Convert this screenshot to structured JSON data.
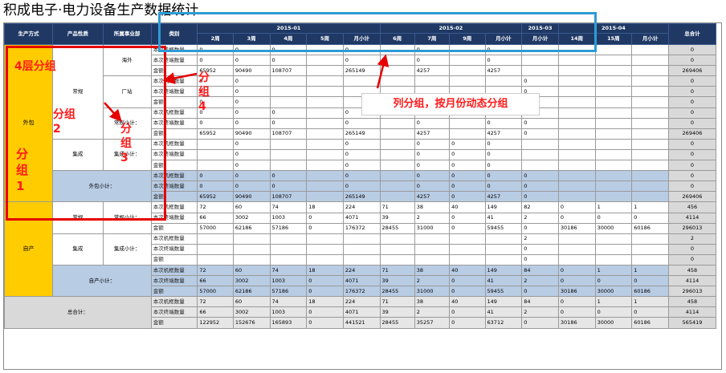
{
  "title": "积成电子·电力设备生产数据统计",
  "headers": {
    "method": "生产方式",
    "attr": "产品性质",
    "dept": "所属事业部",
    "cat": "类别",
    "total": "总合计",
    "months": [
      {
        "label": "2015-01",
        "span": 5
      },
      {
        "label": "2015-02",
        "span": 4
      },
      {
        "label": "2015-03",
        "span": 1
      },
      {
        "label": "2015-04",
        "span": 3
      }
    ],
    "weeks": [
      "2周",
      "3周",
      "4周",
      "5周",
      "月小计",
      "6周",
      "7周",
      "9周",
      "月小计",
      "月小计",
      "14周",
      "15周",
      "月小计"
    ]
  },
  "labels": {
    "waibao": "外包",
    "zichan": "自产",
    "changgui": "常规",
    "jicheng": "集成",
    "haiwai": "海外",
    "changzhan": "厂站",
    "changgui_xiaoji": "常规小计：",
    "jicheng_xiaoji": "集成小计：",
    "waibao_xiaoji": "外包小计：",
    "zichan_xiaoji": "自产小计：",
    "zongheji": "总合计："
  },
  "rows": [
    {
      "cat": "本次机框数量",
      "v": [
        "0",
        "0",
        "0",
        "",
        "0",
        "",
        "0",
        "",
        "0",
        "",
        "",
        "",
        ""
      ],
      "t": "0"
    },
    {
      "cat": "本次终端数量",
      "v": [
        "0",
        "0",
        "0",
        "",
        "0",
        "",
        "0",
        "",
        "0",
        "",
        "",
        "",
        ""
      ],
      "t": "0"
    },
    {
      "cat": "金额",
      "v": [
        "65952",
        "90490",
        "108707",
        "",
        "265149",
        "",
        "4257",
        "",
        "4257",
        "",
        "",
        "",
        ""
      ],
      "t": "269406"
    },
    {
      "cat": "本次机框数量",
      "v": [
        "0",
        "0",
        "",
        "",
        "",
        "",
        "",
        "",
        "",
        "0",
        "",
        "",
        ""
      ],
      "t": "0"
    },
    {
      "cat": "本次终端数量",
      "v": [
        "0",
        "0",
        "",
        "",
        "",
        "",
        "",
        "",
        "",
        "0",
        "",
        "",
        ""
      ],
      "t": "0"
    },
    {
      "cat": "金额",
      "v": [
        "0",
        "0",
        "",
        "",
        "",
        "",
        "",
        "",
        "",
        "0",
        "",
        "",
        ""
      ],
      "t": "0"
    },
    {
      "cat": "本次机框数量",
      "v": [
        "0",
        "0",
        "0",
        "",
        "0",
        "",
        "0",
        "",
        "0",
        "0",
        "",
        "",
        ""
      ],
      "t": "0"
    },
    {
      "cat": "本次终端数量",
      "v": [
        "0",
        "0",
        "0",
        "",
        "0",
        "",
        "0",
        "",
        "0",
        "0",
        "",
        "",
        ""
      ],
      "t": "0"
    },
    {
      "cat": "金额",
      "v": [
        "65952",
        "90490",
        "108707",
        "",
        "265149",
        "",
        "4257",
        "",
        "4257",
        "0",
        "",
        "",
        ""
      ],
      "t": "269406"
    },
    {
      "cat": "本次机框数量",
      "v": [
        "",
        "0",
        "",
        "",
        "0",
        "",
        "0",
        "0",
        "0",
        "",
        "",
        "",
        ""
      ],
      "t": "0"
    },
    {
      "cat": "本次终端数量",
      "v": [
        "",
        "0",
        "",
        "",
        "0",
        "",
        "0",
        "0",
        "0",
        "",
        "",
        "",
        ""
      ],
      "t": "0"
    },
    {
      "cat": "金额",
      "v": [
        "",
        "0",
        "",
        "",
        "0",
        "",
        "0",
        "0",
        "0",
        "",
        "",
        "",
        ""
      ],
      "t": "0"
    },
    {
      "cat": "本次机框数量",
      "v": [
        "0",
        "0",
        "0",
        "",
        "0",
        "",
        "0",
        "0",
        "0",
        "0",
        "",
        "",
        ""
      ],
      "t": "0"
    },
    {
      "cat": "本次终端数量",
      "v": [
        "0",
        "0",
        "0",
        "",
        "0",
        "",
        "0",
        "0",
        "0",
        "0",
        "",
        "",
        ""
      ],
      "t": "0"
    },
    {
      "cat": "金额",
      "v": [
        "65952",
        "90490",
        "108707",
        "",
        "265149",
        "",
        "4257",
        "0",
        "4257",
        "0",
        "",
        "",
        ""
      ],
      "t": "269406"
    },
    {
      "cat": "本次机框数量",
      "v": [
        "72",
        "60",
        "74",
        "18",
        "224",
        "71",
        "38",
        "40",
        "149",
        "82",
        "0",
        "1",
        "1"
      ],
      "t": "456"
    },
    {
      "cat": "本次终端数量",
      "v": [
        "66",
        "3002",
        "1003",
        "0",
        "4071",
        "39",
        "2",
        "0",
        "41",
        "2",
        "0",
        "0",
        "0"
      ],
      "t": "4114"
    },
    {
      "cat": "金额",
      "v": [
        "57000",
        "62186",
        "57186",
        "0",
        "176372",
        "28455",
        "31000",
        "0",
        "59455",
        "0",
        "30186",
        "30000",
        "60186"
      ],
      "t": "296013"
    },
    {
      "cat": "本次机框数量",
      "v": [
        "",
        "",
        "",
        "",
        "",
        "",
        "",
        "",
        "",
        "2",
        "",
        "",
        ""
      ],
      "t": "2"
    },
    {
      "cat": "本次终端数量",
      "v": [
        "",
        "",
        "",
        "",
        "",
        "",
        "",
        "",
        "",
        "0",
        "",
        "",
        ""
      ],
      "t": "0"
    },
    {
      "cat": "金额",
      "v": [
        "",
        "",
        "",
        "",
        "",
        "",
        "",
        "",
        "",
        "0",
        "",
        "",
        ""
      ],
      "t": "0"
    },
    {
      "cat": "本次机框数量",
      "v": [
        "72",
        "60",
        "74",
        "18",
        "224",
        "71",
        "38",
        "40",
        "149",
        "84",
        "0",
        "1",
        "1"
      ],
      "t": "458"
    },
    {
      "cat": "本次终端数量",
      "v": [
        "66",
        "3002",
        "1003",
        "0",
        "4071",
        "39",
        "2",
        "0",
        "41",
        "2",
        "0",
        "0",
        "0"
      ],
      "t": "4114"
    },
    {
      "cat": "金额",
      "v": [
        "57000",
        "62186",
        "57186",
        "0",
        "176372",
        "28455",
        "31000",
        "0",
        "59455",
        "0",
        "30186",
        "30000",
        "60186"
      ],
      "t": "296013"
    },
    {
      "cat": "本次机框数量",
      "v": [
        "72",
        "60",
        "74",
        "18",
        "224",
        "71",
        "38",
        "40",
        "149",
        "84",
        "0",
        "1",
        "1"
      ],
      "t": "458"
    },
    {
      "cat": "本次终端数量",
      "v": [
        "66",
        "3002",
        "1003",
        "0",
        "4071",
        "39",
        "2",
        "0",
        "41",
        "2",
        "0",
        "0",
        "0"
      ],
      "t": "4114"
    },
    {
      "cat": "金额",
      "v": [
        "122952",
        "152676",
        "165893",
        "0",
        "441521",
        "28455",
        "35257",
        "0",
        "63712",
        "0",
        "30186",
        "30000",
        "60186"
      ],
      "t": "565419"
    }
  ],
  "annotations": {
    "layer4": "4层分组",
    "group1": "分组1",
    "group2": "分组2",
    "group3": "分组3",
    "group4": "分组4",
    "col_group": "列分组，按月份动态分组"
  },
  "colors": {
    "header_bg": "#1f3864",
    "yellow": "#ffcc00",
    "subtotal_bg": "#b8cce4",
    "total_bg": "#d9d9d9",
    "annotation_red": "#ff1a1a",
    "callout_blue": "#2e9bd6"
  }
}
